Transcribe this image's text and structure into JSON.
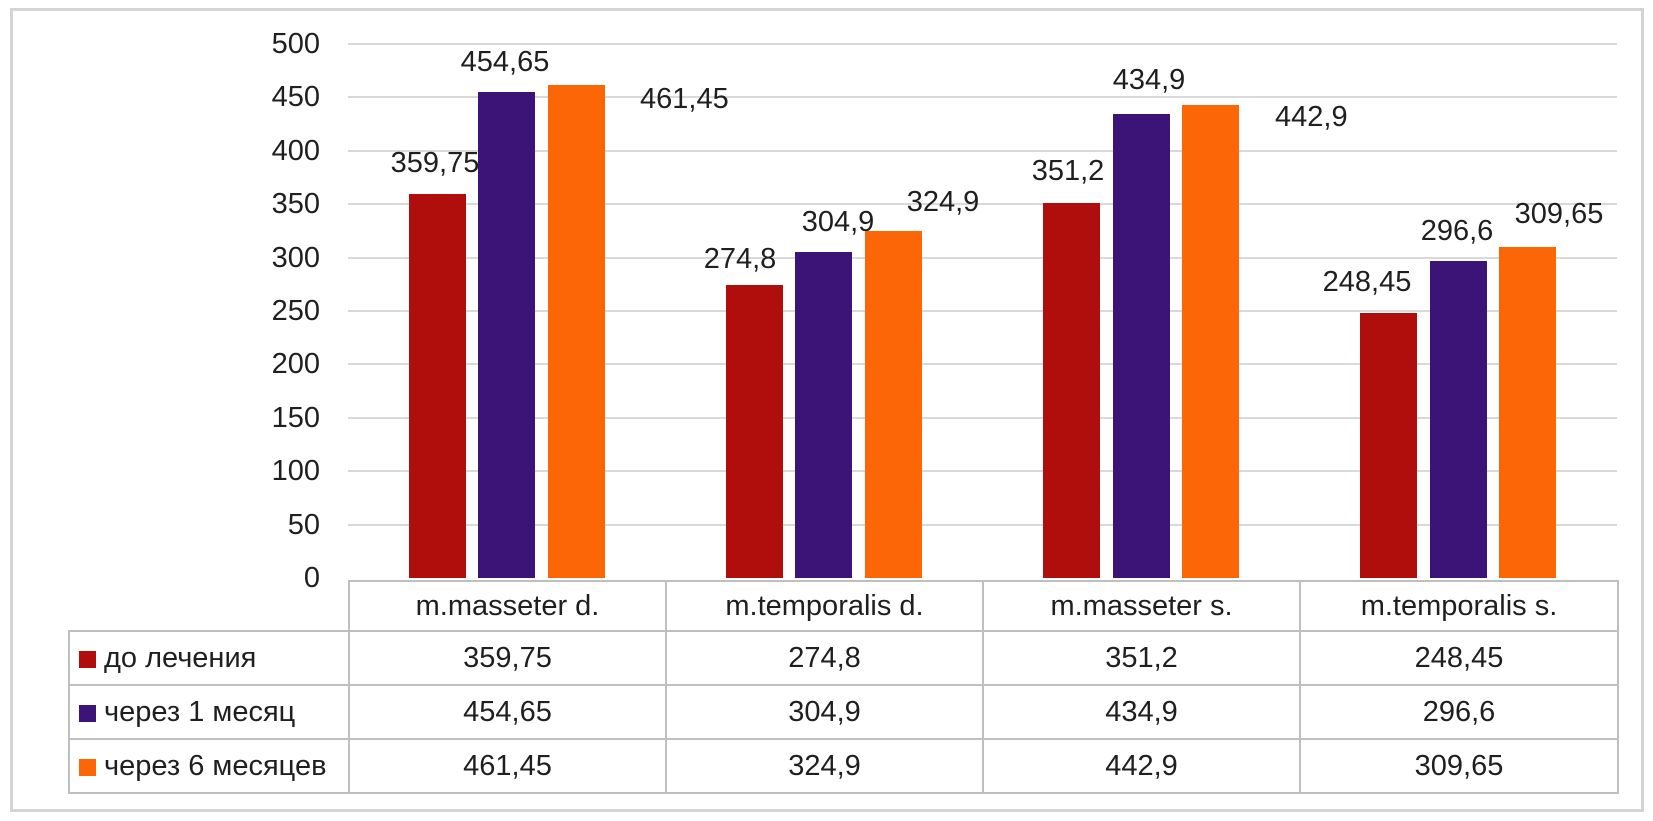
{
  "chart_data": {
    "type": "bar",
    "title": "",
    "xlabel": "",
    "ylabel": "",
    "categories": [
      "m.masseter d.",
      "m.temporalis d.",
      "m.masseter s.",
      "m.temporalis s."
    ],
    "series": [
      {
        "name": "до лечения",
        "color": "#b00d0d",
        "values": [
          359.75,
          274.8,
          351.2,
          248.45
        ],
        "labels": [
          "359,75",
          "274,8",
          "351,2",
          "248,45"
        ]
      },
      {
        "name": "через 1 месяц",
        "color": "#3c1478",
        "values": [
          454.65,
          304.9,
          434.9,
          296.6
        ],
        "labels": [
          "454,65",
          "304,9",
          "434,9",
          "296,6"
        ]
      },
      {
        "name": "через 6 месяцев",
        "color": "#fc6606",
        "values": [
          461.45,
          324.9,
          442.9,
          309.65
        ],
        "labels": [
          "461,45",
          "324,9",
          "442,9",
          "309,65"
        ]
      }
    ],
    "ylim": [
      0,
      500
    ],
    "ytick_step": 50,
    "yticks": [
      "500",
      "450",
      "400",
      "350",
      "300",
      "250",
      "200",
      "150",
      "100",
      "50",
      "0"
    ],
    "grid": true,
    "legend_position": "table-rows-left"
  },
  "colors": {
    "grid": "#d9d9d9",
    "table_border": "#bfbfbf",
    "frame_border": "#d4d4d4",
    "text": "#1f1f1f",
    "background": "#ffffff"
  }
}
